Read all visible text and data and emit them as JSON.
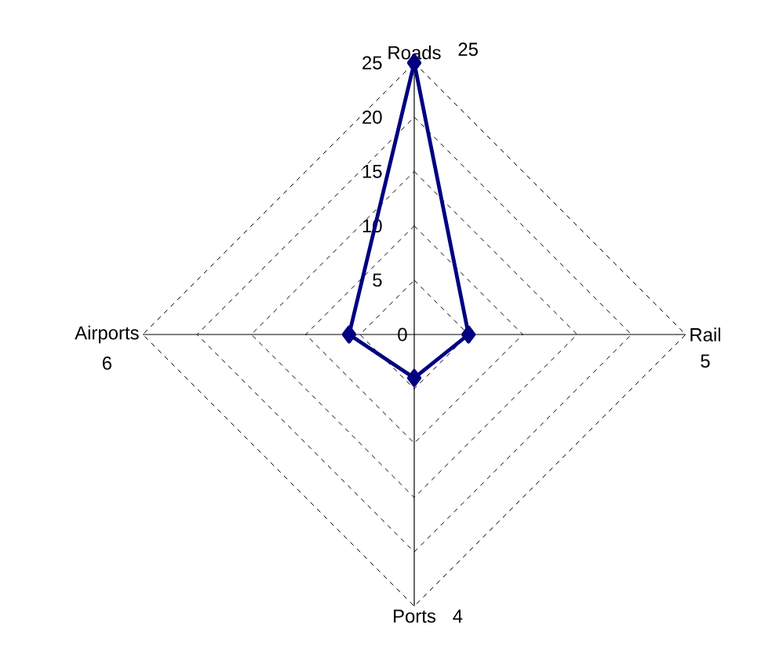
{
  "chart_data": {
    "type": "radar",
    "categories": [
      "Roads",
      "Rail",
      "Ports",
      "Airports"
    ],
    "series": [
      {
        "color": "#000080",
        "values": [
          25,
          5,
          4,
          6
        ]
      }
    ],
    "ylim": [
      0,
      25
    ],
    "yticks": [
      0,
      5,
      10,
      15,
      20,
      25
    ],
    "grid": true,
    "annotations": [
      "25",
      "5",
      "4",
      "6"
    ],
    "marker": "diamond",
    "line_style": "solid"
  }
}
